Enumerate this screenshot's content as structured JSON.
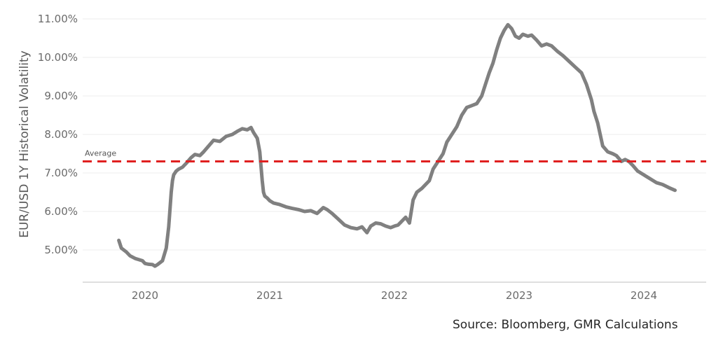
{
  "chart_data": {
    "type": "line",
    "title": "",
    "xlabel": "",
    "ylabel": "EUR/USD 1Y Historical Volatility",
    "ylim": [
      4.25,
      11.0
    ],
    "xlim": [
      2019.5,
      2024.5
    ],
    "y_ticks": [
      "5.00%",
      "6.00%",
      "7.00%",
      "8.00%",
      "9.00%",
      "10.00%",
      "11.00%"
    ],
    "y_tick_values": [
      5,
      6,
      7,
      8,
      9,
      10,
      11
    ],
    "x_ticks": [
      "2020",
      "2021",
      "2022",
      "2023",
      "2024"
    ],
    "x_tick_values": [
      2020,
      2021,
      2022,
      2023,
      2024
    ],
    "grid": "horizontal",
    "series": [
      {
        "name": "",
        "color": "#808080",
        "x": [
          2019.79,
          2019.81,
          2019.85,
          2019.88,
          2019.92,
          2019.95,
          2019.98,
          2020.0,
          2020.03,
          2020.06,
          2020.08,
          2020.1,
          2020.14,
          2020.17,
          2020.19,
          2020.2,
          2020.21,
          2020.22,
          2020.23,
          2020.25,
          2020.27,
          2020.3,
          2020.33,
          2020.37,
          2020.4,
          2020.44,
          2020.47,
          2020.51,
          2020.55,
          2020.6,
          2020.65,
          2020.7,
          2020.74,
          2020.78,
          2020.82,
          2020.85,
          2020.87,
          2020.9,
          2020.92,
          2020.94,
          2020.95,
          2020.96,
          2020.98,
          2021.0,
          2021.03,
          2021.08,
          2021.13,
          2021.18,
          2021.23,
          2021.28,
          2021.33,
          2021.38,
          2021.43,
          2021.46,
          2021.5,
          2021.55,
          2021.6,
          2021.65,
          2021.7,
          2021.74,
          2021.78,
          2021.81,
          2021.85,
          2021.89,
          2021.93,
          2021.97,
          2022.0,
          2022.03,
          2022.06,
          2022.09,
          2022.12,
          2022.15,
          2022.18,
          2022.2,
          2022.22,
          2022.25,
          2022.28,
          2022.31,
          2022.35,
          2022.39,
          2022.42,
          2022.46,
          2022.5,
          2022.54,
          2022.58,
          2022.62,
          2022.66,
          2022.7,
          2022.73,
          2022.76,
          2022.79,
          2022.82,
          2022.85,
          2022.88,
          2022.91,
          2022.94,
          2022.97,
          2023.0,
          2023.03,
          2023.07,
          2023.1,
          2023.14,
          2023.18,
          2023.22,
          2023.26,
          2023.31,
          2023.35,
          2023.4,
          2023.45,
          2023.5,
          2023.54,
          2023.58,
          2023.6,
          2023.63,
          2023.67,
          2023.71,
          2023.75,
          2023.78,
          2023.82,
          2023.85,
          2023.88,
          2023.91,
          2023.95,
          2024.0,
          2024.05,
          2024.1,
          2024.15,
          2024.2,
          2024.25
        ],
        "values": [
          5.25,
          5.05,
          4.95,
          4.85,
          4.78,
          4.75,
          4.72,
          4.65,
          4.63,
          4.62,
          4.58,
          4.62,
          4.72,
          5.05,
          5.6,
          6.05,
          6.5,
          6.8,
          6.95,
          7.05,
          7.1,
          7.15,
          7.25,
          7.4,
          7.48,
          7.45,
          7.55,
          7.7,
          7.85,
          7.82,
          7.95,
          8.0,
          8.08,
          8.15,
          8.12,
          8.18,
          8.05,
          7.9,
          7.55,
          6.8,
          6.5,
          6.4,
          6.35,
          6.28,
          6.22,
          6.18,
          6.12,
          6.08,
          6.05,
          6.0,
          6.02,
          5.95,
          6.1,
          6.05,
          5.95,
          5.8,
          5.65,
          5.58,
          5.55,
          5.6,
          5.45,
          5.62,
          5.7,
          5.68,
          5.62,
          5.58,
          5.62,
          5.65,
          5.75,
          5.85,
          5.7,
          6.3,
          6.5,
          6.55,
          6.6,
          6.7,
          6.8,
          7.1,
          7.3,
          7.5,
          7.8,
          8.0,
          8.2,
          8.5,
          8.7,
          8.75,
          8.8,
          9.0,
          9.3,
          9.6,
          9.85,
          10.2,
          10.5,
          10.7,
          10.85,
          10.75,
          10.55,
          10.5,
          10.6,
          10.55,
          10.58,
          10.45,
          10.3,
          10.35,
          10.3,
          10.15,
          10.05,
          9.9,
          9.75,
          9.6,
          9.3,
          8.9,
          8.6,
          8.3,
          7.7,
          7.55,
          7.5,
          7.45,
          7.3,
          7.35,
          7.3,
          7.2,
          7.05,
          6.95,
          6.85,
          6.75,
          6.7,
          6.62,
          6.55
        ]
      }
    ],
    "reference_lines": [
      {
        "label": "Average",
        "value": 7.3,
        "color": "#e02020",
        "style": "dashed"
      }
    ]
  },
  "footer": {
    "source": "Source: Bloomberg, GMR Calculations"
  }
}
